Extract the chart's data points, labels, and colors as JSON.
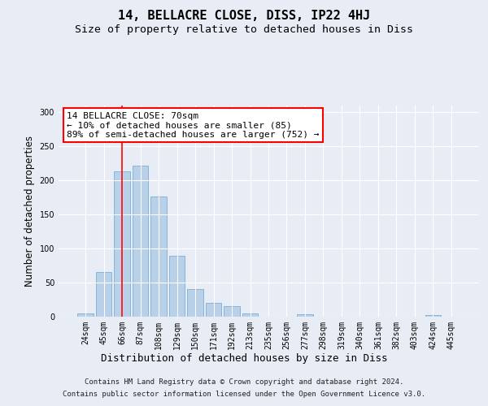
{
  "title1": "14, BELLACRE CLOSE, DISS, IP22 4HJ",
  "title2": "Size of property relative to detached houses in Diss",
  "xlabel": "Distribution of detached houses by size in Diss",
  "ylabel": "Number of detached properties",
  "categories": [
    "24sqm",
    "45sqm",
    "66sqm",
    "87sqm",
    "108sqm",
    "129sqm",
    "150sqm",
    "171sqm",
    "192sqm",
    "213sqm",
    "235sqm",
    "256sqm",
    "277sqm",
    "298sqm",
    "319sqm",
    "340sqm",
    "361sqm",
    "382sqm",
    "403sqm",
    "424sqm",
    "445sqm"
  ],
  "values": [
    5,
    65,
    213,
    222,
    176,
    90,
    40,
    20,
    15,
    5,
    0,
    0,
    3,
    0,
    0,
    0,
    0,
    0,
    0,
    2,
    0
  ],
  "bar_color": "#b8d0e8",
  "bar_edge_color": "#7aafd4",
  "vline_x": 2.0,
  "vline_color": "red",
  "annotation_text": "14 BELLACRE CLOSE: 70sqm\n← 10% of detached houses are smaller (85)\n89% of semi-detached houses are larger (752) →",
  "annotation_box_color": "white",
  "annotation_box_edge": "red",
  "ylim": [
    0,
    310
  ],
  "yticks": [
    0,
    50,
    100,
    150,
    200,
    250,
    300
  ],
  "bg_color": "#e8edf5",
  "plot_bg_color": "#e8edf5",
  "footer1": "Contains HM Land Registry data © Crown copyright and database right 2024.",
  "footer2": "Contains public sector information licensed under the Open Government Licence v3.0.",
  "title1_fontsize": 11,
  "title2_fontsize": 9.5,
  "xlabel_fontsize": 9,
  "ylabel_fontsize": 8.5,
  "tick_fontsize": 7,
  "footer_fontsize": 6.5,
  "annotation_fontsize": 8
}
